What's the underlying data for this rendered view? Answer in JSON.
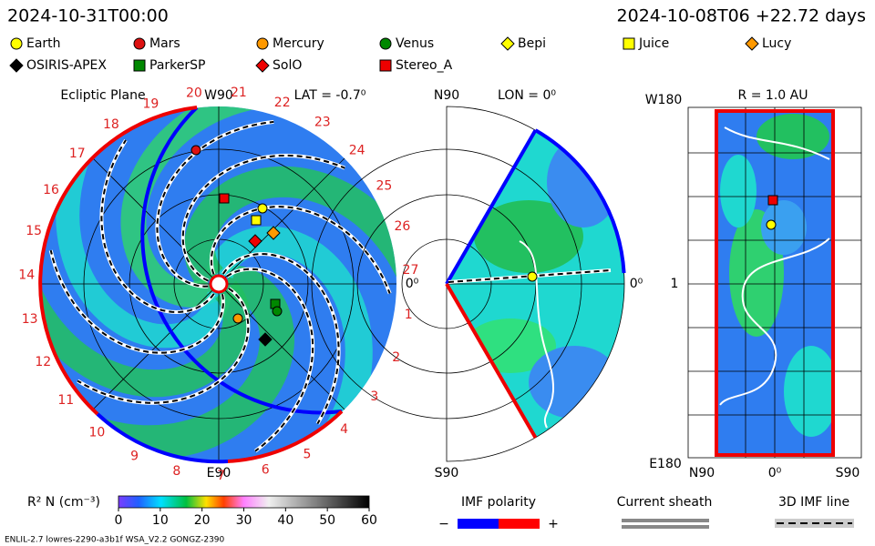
{
  "header": {
    "run_time": "2024-10-31T00:00",
    "model_time": "2024-10-08T06 +22.72 days"
  },
  "legend": {
    "row1": [
      "Earth",
      "Mars",
      "Mercury",
      "Venus",
      "Bepi",
      "Juice",
      "Lucy"
    ],
    "row2": [
      "OSIRIS-APEX",
      "ParkerSP",
      "SolO",
      "Stereo_A"
    ]
  },
  "ecliptic": {
    "title": "Ecliptic Plane",
    "top": "W90",
    "lat": "LAT = -0.7⁰",
    "bottom": "E90",
    "right": "0⁰",
    "sector_labels": [
      "1",
      "2",
      "3",
      "4",
      "5",
      "6",
      "7",
      "8",
      "9",
      "10",
      "11",
      "12",
      "13",
      "14",
      "15",
      "16",
      "17",
      "18",
      "19",
      "20",
      "21",
      "22",
      "23",
      "24",
      "25",
      "26",
      "27"
    ]
  },
  "meridional": {
    "top": "N90",
    "lon": "LON = 0⁰",
    "bottom": "S90",
    "right": "0⁰"
  },
  "radial": {
    "top_left": "W180",
    "title": "R = 1.0 AU",
    "left": "1",
    "bottom_left": "E180",
    "bottom": [
      "N90",
      "0⁰",
      "S90"
    ]
  },
  "colorbar": {
    "label": "R² N (cm⁻³)",
    "range": [
      0,
      60
    ],
    "ticks": [
      0,
      10,
      20,
      30,
      40,
      50,
      60
    ]
  },
  "keys": {
    "imf": "IMF polarity",
    "minus": "−",
    "plus": "+",
    "sheath": "Current sheath",
    "line3d": "3D IMF line"
  },
  "footer": "ENLIL-2.7 lowres-2290-a3b1f WSA_V2.2 GONGZ-2390"
}
